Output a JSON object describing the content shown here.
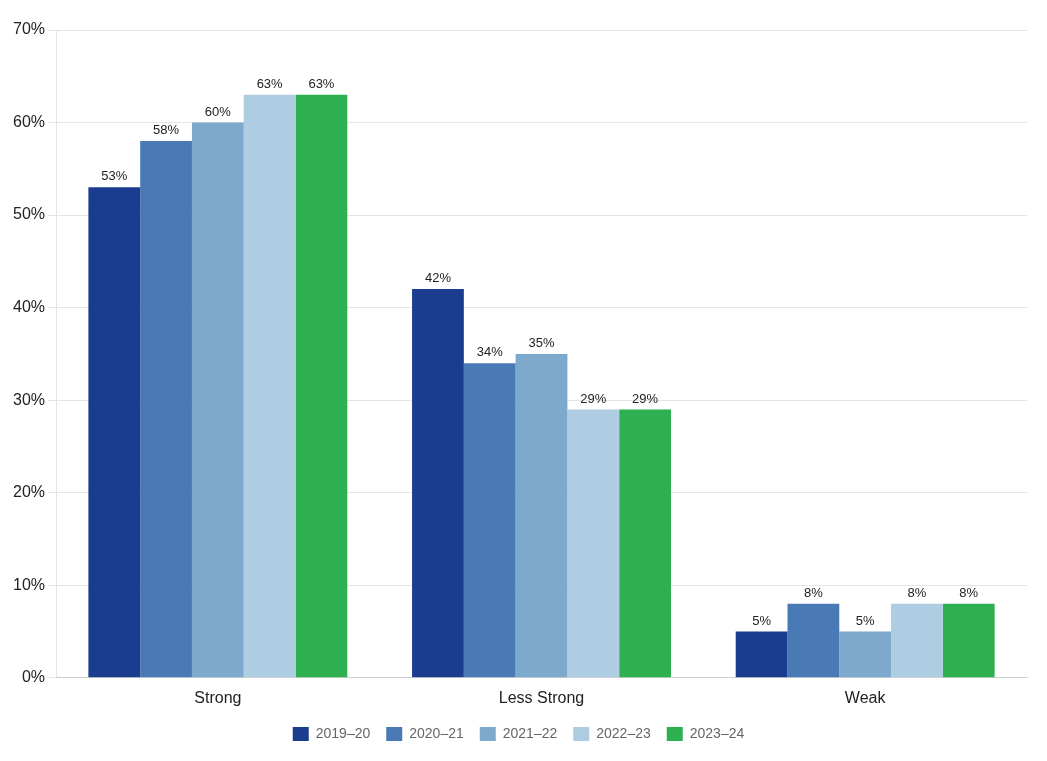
{
  "chart_data": {
    "type": "bar",
    "categories": [
      "Strong",
      "Less Strong",
      "Weak"
    ],
    "series": [
      {
        "name": "2019–20",
        "color": "#1b3d8f",
        "values": [
          53,
          42,
          5
        ],
        "value_labels": [
          "53%",
          "42%",
          "5%"
        ]
      },
      {
        "name": "2020–21",
        "color": "#4a7ab5",
        "values": [
          58,
          34,
          8
        ],
        "value_labels": [
          "58%",
          "34%",
          "8%"
        ]
      },
      {
        "name": "2021–22",
        "color": "#7da9cc",
        "values": [
          60,
          35,
          5
        ],
        "value_labels": [
          "60%",
          "35%",
          "5%"
        ]
      },
      {
        "name": "2022–23",
        "color": "#aecde3",
        "values": [
          63,
          29,
          8
        ],
        "value_labels": [
          "63%",
          "29%",
          "8%"
        ]
      },
      {
        "name": "2023–24",
        "color": "#2eb050",
        "values": [
          63,
          29,
          8
        ],
        "value_labels": [
          "63%",
          "29%",
          "8%"
        ]
      }
    ],
    "ylim": [
      0,
      70
    ],
    "yticks": [
      {
        "value": 0,
        "label": "0%"
      },
      {
        "value": 10,
        "label": "10%"
      },
      {
        "value": 20,
        "label": "20%"
      },
      {
        "value": 30,
        "label": "30%"
      },
      {
        "value": 40,
        "label": "40%"
      },
      {
        "value": 50,
        "label": "50%"
      },
      {
        "value": 60,
        "label": "60%"
      },
      {
        "value": 70,
        "label": "70%"
      }
    ],
    "grid": true,
    "legend": "bottom",
    "data_labels": true
  }
}
